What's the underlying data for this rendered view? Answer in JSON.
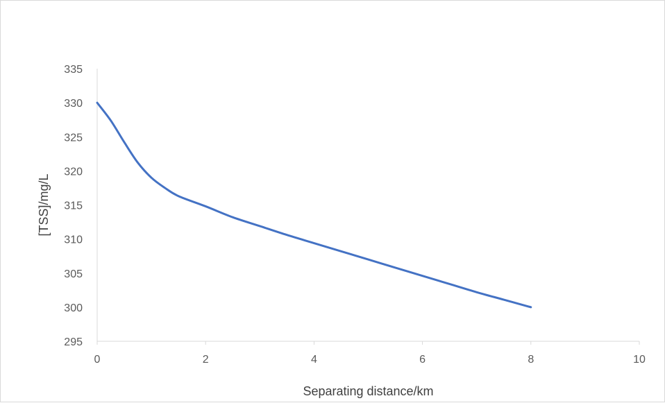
{
  "chart_data": {
    "type": "line",
    "title": "",
    "xlabel": "Separating distance/km",
    "ylabel": "[TSS]/mg/L",
    "xlim": [
      0,
      10
    ],
    "ylim": [
      295,
      335
    ],
    "xticks": [
      0,
      2,
      4,
      6,
      8,
      10
    ],
    "yticks": [
      295,
      300,
      305,
      310,
      315,
      320,
      325,
      330,
      335
    ],
    "grid": false,
    "legend": "none",
    "series": [
      {
        "color": "#4472c4",
        "x": [
          0,
          0.25,
          0.5,
          0.75,
          1,
          1.25,
          1.5,
          2,
          2.5,
          3,
          3.5,
          4,
          4.5,
          5,
          5.5,
          6,
          6.5,
          7,
          7.5,
          8
        ],
        "y": [
          330,
          327.4,
          324.2,
          321.2,
          319,
          317.5,
          316.3,
          314.8,
          313.2,
          311.9,
          310.6,
          309.4,
          308.2,
          307.0,
          305.8,
          304.6,
          303.4,
          302.2,
          301.1,
          300.0
        ]
      }
    ]
  }
}
